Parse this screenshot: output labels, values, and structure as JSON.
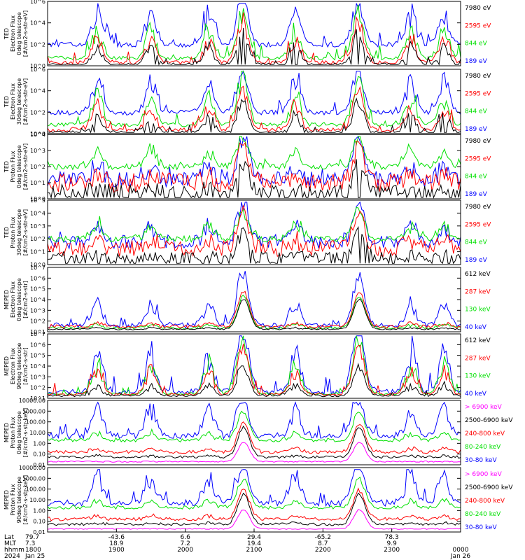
{
  "colors": {
    "blue": "#0000ff",
    "red": "#ff0000",
    "green": "#00e000",
    "black": "#000000",
    "magenta": "#ff00ff"
  },
  "chart_data": {
    "type": "line",
    "x_range_hhmm": [
      "1800",
      "0000"
    ],
    "grid": false,
    "panels": [
      {
        "ylabel": [
          "TED",
          "Electron Flux",
          "0deg telescope",
          "[#/cm2-s-str-eV]"
        ],
        "log_scale": true,
        "y_ticks": [
          "10^6",
          "10^4",
          "10^2",
          "10^0"
        ],
        "legend": [
          {
            "text": "7980 eV",
            "color": "black"
          },
          {
            "text": "2595 eV",
            "color": "red"
          },
          {
            "text": "844 eV",
            "color": "green"
          },
          {
            "text": "189 eV",
            "color": "blue"
          }
        ]
      },
      {
        "ylabel": [
          "TED",
          "Electron Flux",
          "30deg telescope",
          "[#/cm2-s-str-eV]"
        ],
        "log_scale": true,
        "y_ticks": [
          "10^6",
          "10^4",
          "10^2",
          "10^0"
        ],
        "legend": [
          {
            "text": "7980 eV",
            "color": "black"
          },
          {
            "text": "2595 eV",
            "color": "red"
          },
          {
            "text": "844 eV",
            "color": "green"
          },
          {
            "text": "189 eV",
            "color": "blue"
          }
        ]
      },
      {
        "ylabel": [
          "TED",
          "Proton Flux",
          "0deg telescope",
          "[#/cm2-s-str-eV]"
        ],
        "log_scale": true,
        "y_ticks": [
          "10^4",
          "10^3",
          "10^2",
          "10^1",
          "10^0"
        ],
        "legend": [
          {
            "text": "7980 eV",
            "color": "black"
          },
          {
            "text": "2595 eV",
            "color": "red"
          },
          {
            "text": "844 eV",
            "color": "green"
          },
          {
            "text": "189 eV",
            "color": "blue"
          }
        ]
      },
      {
        "ylabel": [
          "TED",
          "Proton Flux",
          "30deg telescope",
          "[#/cm2-s-str-eV]"
        ],
        "log_scale": true,
        "y_ticks": [
          "10^5",
          "10^4",
          "10^3",
          "10^2",
          "10^1",
          "10^0"
        ],
        "legend": [
          {
            "text": "7980 eV",
            "color": "black"
          },
          {
            "text": "2595 eV",
            "color": "red"
          },
          {
            "text": "844 eV",
            "color": "green"
          },
          {
            "text": "189 eV",
            "color": "blue"
          }
        ]
      },
      {
        "ylabel": [
          "MEPED",
          "Electron Flux",
          "0deg telescope",
          "[#/cm2-s-str]"
        ],
        "log_scale": true,
        "y_ticks": [
          "10^7",
          "10^6",
          "10^5",
          "10^4",
          "10^3",
          "10^2",
          "10^1"
        ],
        "legend": [
          {
            "text": "612 keV",
            "color": "black"
          },
          {
            "text": "287 keV",
            "color": "red"
          },
          {
            "text": "130 keV",
            "color": "green"
          },
          {
            "text": "40 keV",
            "color": "blue"
          }
        ]
      },
      {
        "ylabel": [
          "MEPED",
          "Electron Flux",
          "90deg telescope",
          "[#/cm2-s-str]"
        ],
        "log_scale": true,
        "y_ticks": [
          "10^7",
          "10^6",
          "10^5",
          "10^4",
          "10^3",
          "10^2",
          "10^1"
        ],
        "legend": [
          {
            "text": "612 keV",
            "color": "black"
          },
          {
            "text": "287 keV",
            "color": "red"
          },
          {
            "text": "130 keV",
            "color": "green"
          },
          {
            "text": "40 keV",
            "color": "blue"
          }
        ]
      },
      {
        "ylabel": [
          "MEPED",
          "Proton Flux",
          "0deg telescope",
          "[#/cm2-s-str-keV]"
        ],
        "log_scale": true,
        "y_ticks": [
          "10000.00",
          "1000.00",
          "100.00",
          "10.00",
          "1.00",
          "0.10",
          "0.01"
        ],
        "legend": [
          {
            "text": "> 6900 keV",
            "color": "magenta"
          },
          {
            "text": "2500-6900 keV",
            "color": "black"
          },
          {
            "text": "240-800 keV",
            "color": "red"
          },
          {
            "text": "80-240 keV",
            "color": "green"
          },
          {
            "text": "30-80 keV",
            "color": "blue"
          }
        ]
      },
      {
        "ylabel": [
          "MEPED",
          "Proton Flux",
          "90deg telescope",
          "[#/cm2-s-str-keV]"
        ],
        "log_scale": true,
        "y_ticks": [
          "10000.00",
          "1000.00",
          "100.00",
          "10.00",
          "1.00",
          "0.10",
          "0.01"
        ],
        "legend": [
          {
            "text": "> 6900 keV",
            "color": "magenta"
          },
          {
            "text": "2500-6900 keV",
            "color": "black"
          },
          {
            "text": "240-800 keV",
            "color": "red"
          },
          {
            "text": "80-240 keV",
            "color": "green"
          },
          {
            "text": "30-80 keV",
            "color": "blue"
          }
        ]
      }
    ],
    "x_axis": {
      "row_labels": [
        "Lat",
        "MLT",
        "hhmm",
        "2024"
      ],
      "columns": [
        {
          "lat": "79.7",
          "mlt": "7.3",
          "hhmm": "1800",
          "date": "Jan 25"
        },
        {
          "lat": "-43.6",
          "mlt": "18.9",
          "hhmm": "1900",
          "date": ""
        },
        {
          "lat": "6.6",
          "mlt": "7.2",
          "hhmm": "2000",
          "date": ""
        },
        {
          "lat": "29.4",
          "mlt": "19.4",
          "hhmm": "2100",
          "date": ""
        },
        {
          "lat": "-65.2",
          "mlt": "8.7",
          "hhmm": "2200",
          "date": ""
        },
        {
          "lat": "78.3",
          "mlt": "9.9",
          "hhmm": "2300",
          "date": ""
        },
        {
          "lat": "",
          "mlt": "",
          "hhmm": "0000",
          "date": "Jan 26"
        }
      ]
    }
  }
}
